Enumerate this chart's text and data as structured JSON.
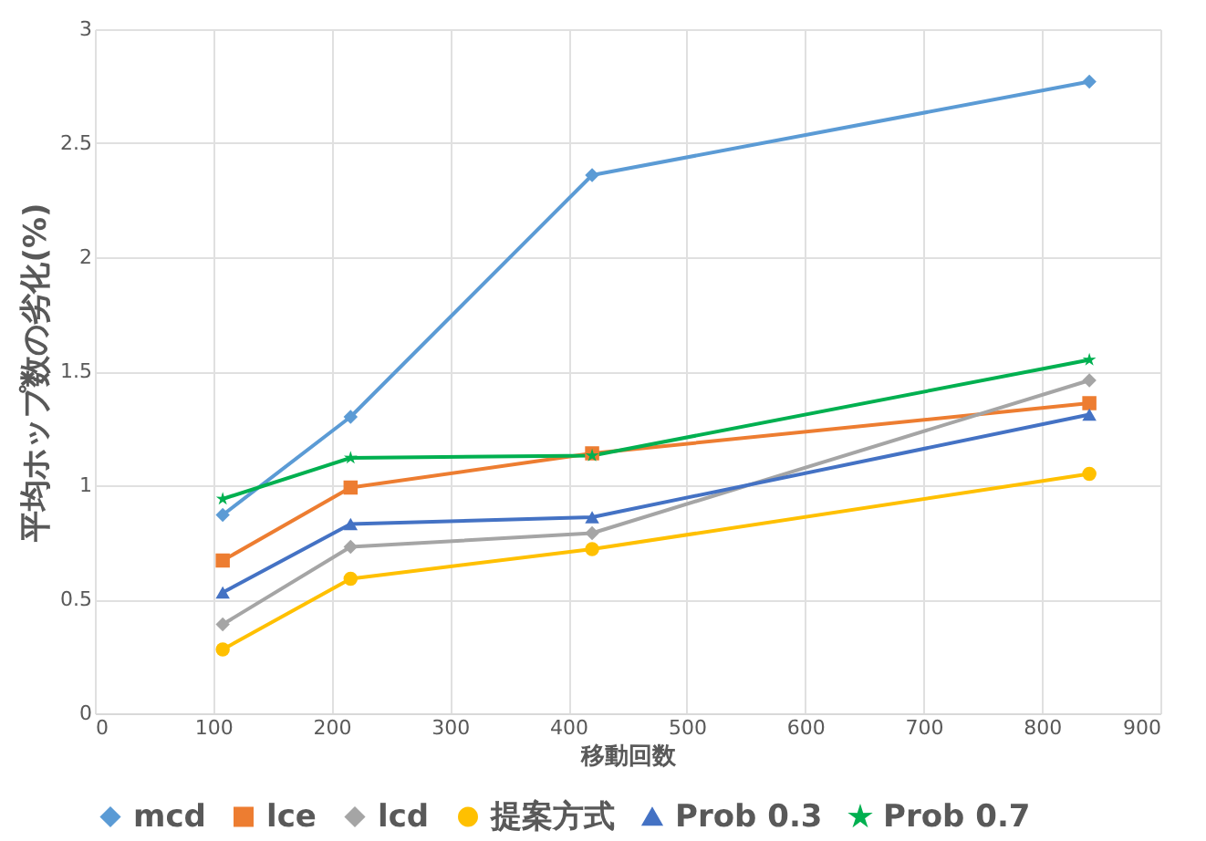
{
  "chart_data": {
    "type": "line",
    "xlabel": "移動回数",
    "ylabel": "平均ホップ数の劣化(%)",
    "xlim": [
      0,
      900
    ],
    "xticks": [
      0,
      100,
      200,
      300,
      400,
      500,
      600,
      700,
      800,
      900
    ],
    "ylim": [
      0,
      3
    ],
    "yticks": [
      0,
      0.5,
      1,
      1.5,
      2,
      2.5,
      3
    ],
    "grid": true,
    "legend": "bottom",
    "line_style": "solid",
    "series": [
      {
        "name": "mcd",
        "color": "#5b9bd5",
        "marker": "diamond",
        "x": [
          108,
          216,
          420,
          840
        ],
        "values": [
          0.87,
          1.3,
          2.36,
          2.77
        ]
      },
      {
        "name": "lce",
        "color": "#ed7d31",
        "marker": "square",
        "x": [
          108,
          216,
          420,
          840
        ],
        "values": [
          0.67,
          0.99,
          1.14,
          1.36
        ]
      },
      {
        "name": "lcd",
        "color": "#a5a5a5",
        "marker": "diamond",
        "x": [
          108,
          216,
          420,
          840
        ],
        "values": [
          0.39,
          0.73,
          0.79,
          1.46
        ]
      },
      {
        "name": "提案方式",
        "color": "#ffc000",
        "marker": "circle",
        "x": [
          108,
          216,
          420,
          840
        ],
        "values": [
          0.28,
          0.59,
          0.72,
          1.05
        ]
      },
      {
        "name": "Prob 0.3",
        "color": "#4472c4",
        "marker": "triangle",
        "x": [
          108,
          216,
          420,
          840
        ],
        "values": [
          0.53,
          0.83,
          0.86,
          1.31
        ]
      },
      {
        "name": "Prob 0.7",
        "color": "#00b050",
        "marker": "star",
        "x": [
          108,
          216,
          420,
          840
        ],
        "values": [
          0.94,
          1.12,
          1.13,
          1.55
        ]
      }
    ]
  }
}
